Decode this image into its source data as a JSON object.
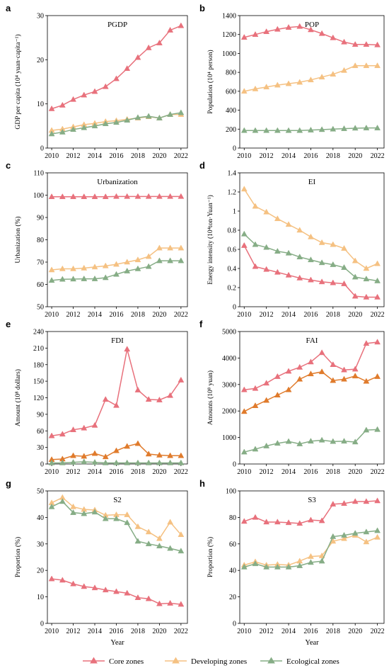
{
  "colors": {
    "core": "#e8717c",
    "developing": "#f5c182",
    "ecological": "#86ad86",
    "developing_fdi": "#e07b2c"
  },
  "legend": [
    {
      "key": "core",
      "label": "Core zones"
    },
    {
      "key": "developing",
      "label": "Developing zones"
    },
    {
      "key": "ecological",
      "label": "Ecological zones"
    }
  ],
  "chart_data": [
    {
      "letter": "a",
      "title": "PGDP",
      "type": "line",
      "ylabel": "GDP per capita (10⁴ yuan·capita⁻¹)",
      "xlabel": "",
      "ylim": [
        0,
        30
      ],
      "yticks": [
        0,
        10,
        20,
        30
      ],
      "xticks": [
        2010,
        2012,
        2014,
        2016,
        2018,
        2020,
        2022
      ],
      "x": [
        2010,
        2011,
        2012,
        2013,
        2014,
        2015,
        2016,
        2017,
        2018,
        2019,
        2020,
        2021,
        2022
      ],
      "series": [
        {
          "key": "core",
          "values": [
            8.9,
            9.7,
            11.0,
            12.0,
            12.8,
            13.9,
            15.7,
            18.0,
            20.5,
            22.7,
            23.8,
            26.7,
            27.7
          ]
        },
        {
          "key": "developing",
          "values": [
            4.0,
            4.3,
            4.8,
            5.3,
            5.6,
            6.0,
            6.2,
            6.5,
            6.8,
            7.1,
            6.8,
            7.6,
            7.6
          ]
        },
        {
          "key": "ecological",
          "values": [
            3.2,
            3.6,
            4.2,
            4.6,
            5.0,
            5.5,
            5.8,
            6.3,
            6.9,
            7.2,
            6.8,
            7.6,
            8.0
          ]
        }
      ]
    },
    {
      "letter": "b",
      "title": "POP",
      "type": "line",
      "ylabel": "Population (10⁴ person)",
      "xlabel": "",
      "ylim": [
        0,
        1400
      ],
      "yticks": [
        0,
        200,
        400,
        600,
        800,
        1000,
        1200,
        1400
      ],
      "xticks": [
        2010,
        2012,
        2014,
        2016,
        2018,
        2020,
        2022
      ],
      "x": [
        2010,
        2011,
        2012,
        2013,
        2014,
        2015,
        2016,
        2017,
        2018,
        2019,
        2020,
        2021,
        2022
      ],
      "series": [
        {
          "key": "core",
          "values": [
            1170,
            1200,
            1230,
            1255,
            1275,
            1285,
            1250,
            1210,
            1165,
            1120,
            1095,
            1095,
            1090
          ]
        },
        {
          "key": "developing",
          "values": [
            600,
            625,
            645,
            665,
            680,
            695,
            720,
            750,
            780,
            820,
            870,
            870,
            870
          ]
        },
        {
          "key": "ecological",
          "values": [
            185,
            185,
            185,
            185,
            185,
            185,
            190,
            195,
            200,
            205,
            210,
            212,
            212
          ]
        }
      ]
    },
    {
      "letter": "c",
      "title": "Urbanization",
      "type": "line",
      "ylabel": "Urbanization (%)",
      "xlabel": "",
      "ylim": [
        50,
        110
      ],
      "yticks": [
        50,
        60,
        70,
        80,
        90,
        100,
        110
      ],
      "xticks": [
        2010,
        2012,
        2014,
        2016,
        2018,
        2020,
        2022
      ],
      "x": [
        2010,
        2011,
        2012,
        2013,
        2014,
        2015,
        2016,
        2017,
        2018,
        2019,
        2020,
        2021,
        2022
      ],
      "series": [
        {
          "key": "core",
          "values": [
            99.3,
            99.3,
            99.3,
            99.3,
            99.3,
            99.3,
            99.4,
            99.4,
            99.4,
            99.4,
            99.4,
            99.4,
            99.4
          ]
        },
        {
          "key": "developing",
          "values": [
            66.5,
            67.0,
            67.0,
            67.3,
            67.8,
            68.3,
            69.0,
            70.0,
            71.0,
            72.5,
            76.3,
            76.3,
            76.3
          ]
        },
        {
          "key": "ecological",
          "values": [
            61.8,
            62.3,
            62.4,
            62.5,
            62.5,
            63.0,
            64.5,
            66.0,
            67.0,
            68.0,
            70.6,
            70.6,
            70.6
          ]
        }
      ]
    },
    {
      "letter": "d",
      "title": "EI",
      "type": "line",
      "ylabel": "Energy intensity (10⁴ton·Yuan⁻¹)",
      "xlabel": "",
      "ylim": [
        0,
        1.4
      ],
      "yticks": [
        0,
        0.2,
        0.4,
        0.6,
        0.8,
        1,
        1.2,
        1.4
      ],
      "xticks": [
        2010,
        2012,
        2014,
        2016,
        2018,
        2020,
        2022
      ],
      "x": [
        2010,
        2011,
        2012,
        2013,
        2014,
        2015,
        2016,
        2017,
        2018,
        2019,
        2020,
        2021,
        2022
      ],
      "series": [
        {
          "key": "core",
          "values": [
            0.64,
            0.42,
            0.39,
            0.36,
            0.33,
            0.3,
            0.28,
            0.26,
            0.25,
            0.24,
            0.11,
            0.1,
            0.1
          ]
        },
        {
          "key": "developing",
          "values": [
            1.23,
            1.05,
            0.99,
            0.92,
            0.86,
            0.8,
            0.73,
            0.67,
            0.65,
            0.61,
            0.48,
            0.4,
            0.45
          ]
        },
        {
          "key": "ecological",
          "values": [
            0.76,
            0.65,
            0.62,
            0.58,
            0.56,
            0.52,
            0.49,
            0.46,
            0.44,
            0.41,
            0.31,
            0.29,
            0.27
          ]
        }
      ]
    },
    {
      "letter": "e",
      "title": "FDI",
      "type": "line",
      "ylabel": "Amount (10⁸ dollars)",
      "xlabel": "",
      "ylim": [
        0,
        240
      ],
      "yticks": [
        0,
        30,
        60,
        90,
        120,
        150,
        180,
        210,
        240
      ],
      "xticks": [
        2010,
        2012,
        2014,
        2016,
        2018,
        2020,
        2022
      ],
      "x": [
        2010,
        2011,
        2012,
        2013,
        2014,
        2015,
        2016,
        2017,
        2018,
        2019,
        2020,
        2021,
        2022
      ],
      "series": [
        {
          "key": "core",
          "values": [
            51,
            54,
            62,
            65,
            70,
            117,
            106,
            208,
            134,
            117,
            116,
            124,
            152
          ]
        },
        {
          "key": "developing_fdi",
          "values": [
            8,
            9,
            15,
            14,
            19,
            13,
            24,
            32,
            37,
            18,
            16,
            15,
            15
          ]
        },
        {
          "key": "ecological",
          "values": [
            2,
            2,
            3,
            4,
            3,
            2,
            2,
            2,
            2,
            2,
            2,
            2,
            2
          ]
        }
      ]
    },
    {
      "letter": "f",
      "title": "FAI",
      "type": "line",
      "ylabel": "Amounts (10⁸ yuan)",
      "xlabel": "",
      "ylim": [
        0,
        5000
      ],
      "yticks": [
        0,
        1000,
        2000,
        3000,
        4000,
        5000
      ],
      "xticks": [
        2010,
        2012,
        2014,
        2016,
        2018,
        2020,
        2022
      ],
      "x": [
        2010,
        2011,
        2012,
        2013,
        2014,
        2015,
        2016,
        2017,
        2018,
        2019,
        2020,
        2021,
        2022
      ],
      "series": [
        {
          "key": "core",
          "values": [
            2800,
            2850,
            3050,
            3300,
            3500,
            3650,
            3850,
            4200,
            3750,
            3550,
            3580,
            4550,
            4600
          ]
        },
        {
          "key": "developing_fdi",
          "values": [
            1980,
            2200,
            2400,
            2600,
            2800,
            3200,
            3400,
            3480,
            3150,
            3200,
            3320,
            3120,
            3300
          ]
        },
        {
          "key": "ecological",
          "values": [
            450,
            560,
            680,
            780,
            850,
            760,
            860,
            900,
            850,
            860,
            830,
            1280,
            1300
          ]
        }
      ]
    },
    {
      "letter": "g",
      "title": "S2",
      "type": "line",
      "ylabel": "Proportion (%)",
      "xlabel": "Year",
      "ylim": [
        0,
        50
      ],
      "yticks": [
        0,
        10,
        20,
        30,
        40,
        50
      ],
      "xticks": [
        2010,
        2012,
        2014,
        2016,
        2018,
        2020,
        2022
      ],
      "x": [
        2010,
        2011,
        2012,
        2013,
        2014,
        2015,
        2016,
        2017,
        2018,
        2019,
        2020,
        2021,
        2022
      ],
      "series": [
        {
          "key": "core",
          "values": [
            16.8,
            16.3,
            14.9,
            13.9,
            13.4,
            12.6,
            12.0,
            11.4,
            9.7,
            9.3,
            7.4,
            7.6,
            7.2
          ]
        },
        {
          "key": "developing",
          "values": [
            45.5,
            47.5,
            44.0,
            43.0,
            42.8,
            40.8,
            41.0,
            41.0,
            36.5,
            34.5,
            32.0,
            38.2,
            33.5
          ]
        },
        {
          "key": "ecological",
          "values": [
            44.0,
            46.0,
            41.8,
            41.4,
            42.0,
            39.5,
            39.5,
            38.0,
            31.0,
            30.0,
            29.2,
            28.3,
            27.3
          ]
        }
      ]
    },
    {
      "letter": "h",
      "title": "S3",
      "type": "line",
      "ylabel": "Proportion (%)",
      "xlabel": "Year",
      "ylim": [
        0,
        100
      ],
      "yticks": [
        0,
        20,
        40,
        60,
        80,
        100
      ],
      "xticks": [
        2010,
        2012,
        2014,
        2016,
        2018,
        2020,
        2022
      ],
      "x": [
        2010,
        2011,
        2012,
        2013,
        2014,
        2015,
        2016,
        2017,
        2018,
        2019,
        2020,
        2021,
        2022
      ],
      "series": [
        {
          "key": "core",
          "values": [
            77,
            80,
            76.5,
            76.5,
            76,
            75.5,
            78,
            77.5,
            90,
            90.5,
            92,
            92,
            92.5
          ]
        },
        {
          "key": "developing",
          "values": [
            44,
            46.5,
            44,
            44.5,
            44,
            47,
            50.5,
            51,
            62,
            64,
            66.5,
            61.5,
            65
          ]
        },
        {
          "key": "ecological",
          "values": [
            42.5,
            45,
            42.5,
            42.5,
            42.5,
            43.5,
            46,
            47,
            65.5,
            66.5,
            68,
            69,
            70
          ]
        }
      ]
    }
  ]
}
